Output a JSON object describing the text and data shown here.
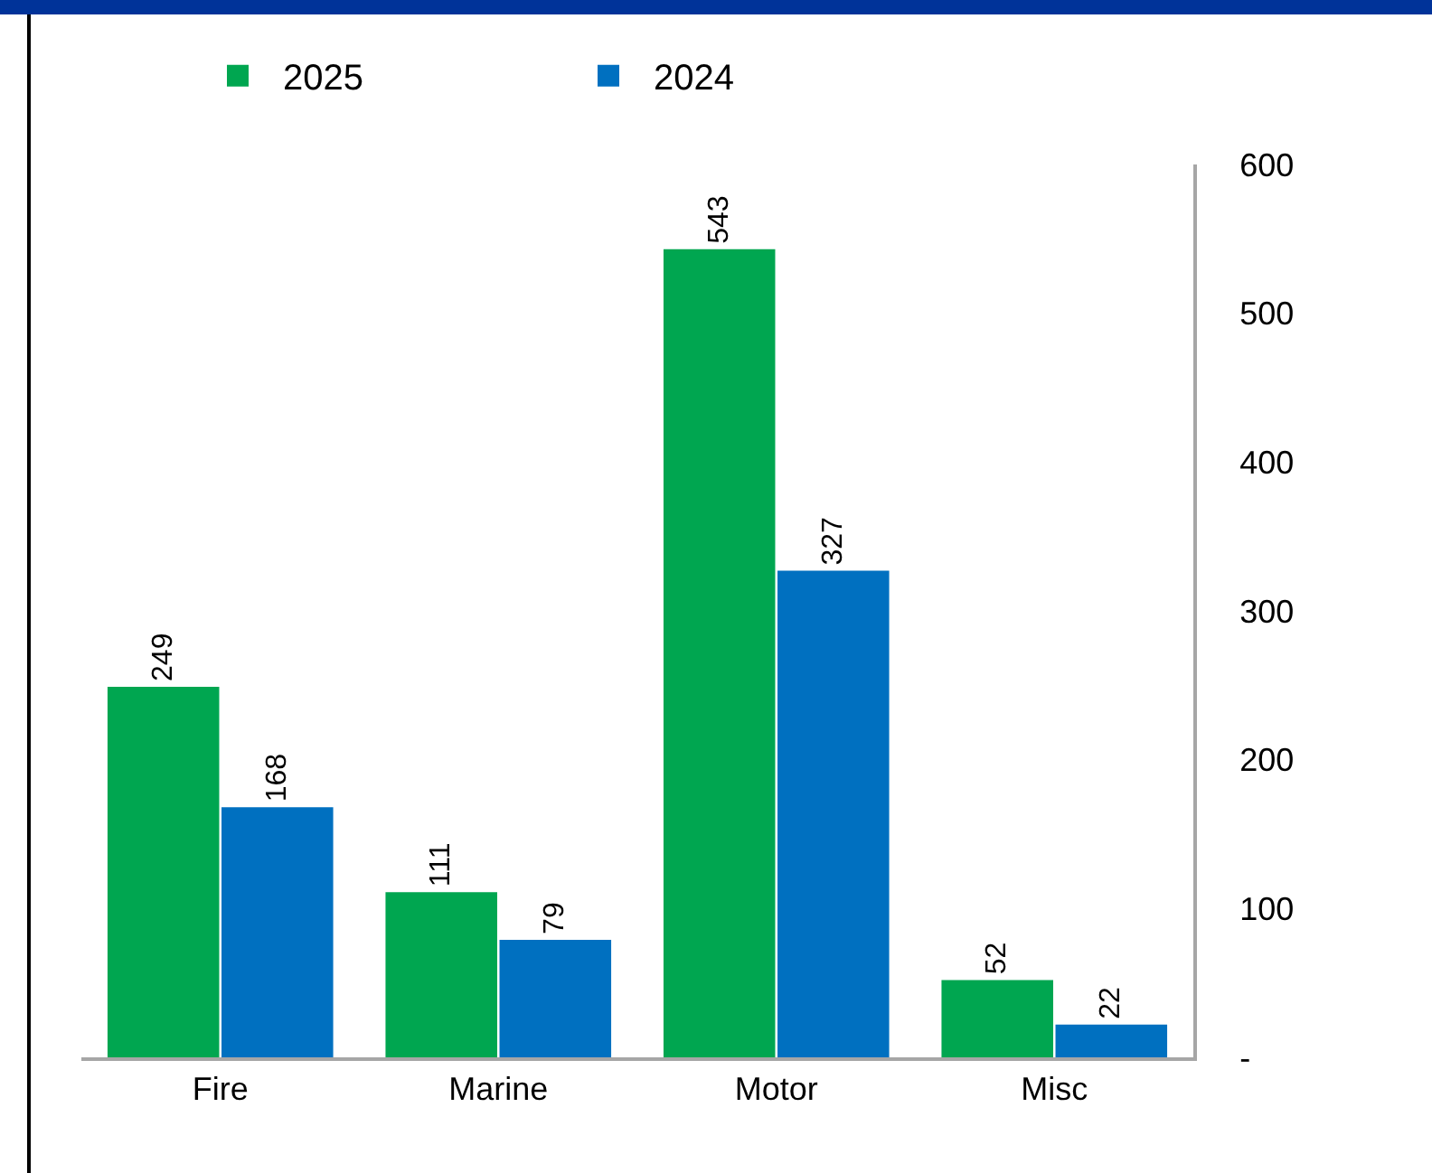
{
  "chart_data": {
    "type": "bar",
    "categories": [
      "Fire",
      "Marine",
      "Motor",
      "Misc"
    ],
    "series": [
      {
        "name": "2025",
        "color": "#00a650",
        "values": [
          249,
          111,
          543,
          52
        ]
      },
      {
        "name": "2024",
        "color": "#0070c0",
        "values": [
          168,
          79,
          327,
          22
        ]
      }
    ],
    "ylim": [
      0,
      600
    ],
    "yticks": [
      {
        "value": 0,
        "label": "-"
      },
      100,
      200,
      300,
      400,
      500,
      600
    ],
    "data_labels": true,
    "grid": false,
    "legend": "top left"
  }
}
